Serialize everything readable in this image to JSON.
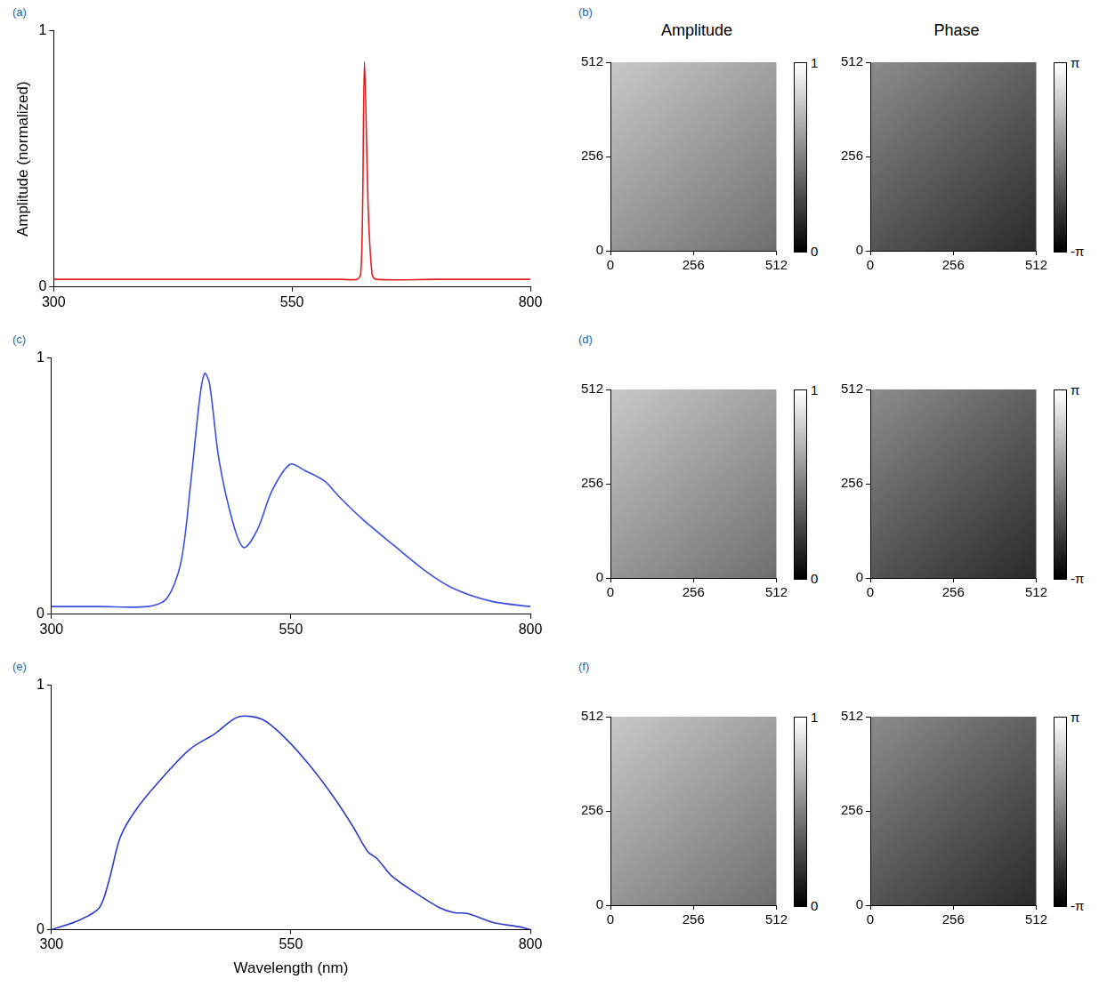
{
  "chart_data": [
    {
      "panel": "(a)",
      "type": "line",
      "y_label": "Amplitude (normalized)",
      "x": [
        300,
        400,
        500,
        600,
        618,
        622,
        624,
        626,
        630,
        634,
        638,
        700,
        800
      ],
      "series": [
        {
          "color": "#e02020",
          "values": [
            0.03,
            0.03,
            0.03,
            0.03,
            0.03,
            0.05,
            0.3,
            0.88,
            0.3,
            0.05,
            0.03,
            0.03,
            0.03
          ]
        }
      ],
      "xlim": [
        300,
        800
      ],
      "ylim": [
        0,
        1
      ],
      "xticks": [
        300,
        550,
        800
      ],
      "yticks": [
        0,
        1
      ],
      "grid": false
    },
    {
      "panel": "(c)",
      "type": "line",
      "x": [
        300,
        350,
        400,
        420,
        435,
        445,
        455,
        460,
        465,
        475,
        490,
        501,
        515,
        530,
        549,
        565,
        585,
        600,
        625,
        657,
        690,
        720,
        760,
        800
      ],
      "series": [
        {
          "color": "#3a4ee0",
          "values": [
            0.03,
            0.03,
            0.03,
            0.06,
            0.2,
            0.5,
            0.85,
            0.94,
            0.9,
            0.6,
            0.35,
            0.26,
            0.33,
            0.48,
            0.585,
            0.56,
            0.52,
            0.46,
            0.37,
            0.27,
            0.17,
            0.1,
            0.05,
            0.03
          ]
        }
      ],
      "xlim": [
        300,
        800
      ],
      "ylim": [
        0,
        1
      ],
      "xticks": [
        300,
        550,
        800
      ],
      "yticks": [
        0,
        1
      ],
      "grid": false
    },
    {
      "panel": "(e)",
      "type": "line",
      "x_label": "Wavelength (nm)",
      "x": [
        300,
        330,
        350,
        360,
        372,
        390,
        420,
        445,
        470,
        495,
        520,
        545,
        570,
        595,
        615,
        630,
        640,
        655,
        680,
        705,
        720,
        735,
        760,
        790,
        800
      ],
      "series": [
        {
          "color": "#2a3cc8",
          "values": [
            0,
            0.04,
            0.09,
            0.2,
            0.38,
            0.5,
            0.64,
            0.74,
            0.8,
            0.87,
            0.86,
            0.78,
            0.67,
            0.54,
            0.42,
            0.32,
            0.29,
            0.22,
            0.15,
            0.09,
            0.07,
            0.065,
            0.03,
            0.01,
            0
          ]
        }
      ],
      "xlim": [
        300,
        800
      ],
      "ylim": [
        0,
        1
      ],
      "xticks": [
        300,
        550,
        800
      ],
      "yticks": [
        0,
        1
      ],
      "grid": false
    }
  ],
  "images": [
    {
      "panel": "(b)",
      "images": [
        {
          "title": "Amplitude",
          "xlim": [
            0,
            512
          ],
          "ylim": [
            0,
            512
          ],
          "xticks": [
            0,
            256,
            512
          ],
          "yticks": [
            0,
            256,
            512
          ],
          "colorbar": {
            "range": [
              0,
              1
            ],
            "ticks": [
              0,
              1
            ]
          }
        },
        {
          "title": "Phase",
          "xlim": [
            0,
            512
          ],
          "ylim": [
            0,
            512
          ],
          "xticks": [
            0,
            256,
            512
          ],
          "yticks": [
            0,
            256,
            512
          ],
          "colorbar": {
            "range": [
              -3.14159,
              3.14159
            ],
            "ticks": [
              {
                "value": -3.14159,
                "label": "-π"
              },
              {
                "value": 3.14159,
                "label": "π"
              }
            ]
          }
        }
      ]
    },
    {
      "panel": "(d)",
      "images": [
        {
          "xlim": [
            0,
            512
          ],
          "ylim": [
            0,
            512
          ],
          "xticks": [
            0,
            256,
            512
          ],
          "yticks": [
            0,
            256,
            512
          ],
          "colorbar": {
            "range": [
              0,
              1
            ],
            "ticks": [
              0,
              1
            ]
          }
        },
        {
          "xlim": [
            0,
            512
          ],
          "ylim": [
            0,
            512
          ],
          "xticks": [
            0,
            256,
            512
          ],
          "yticks": [
            0,
            256,
            512
          ],
          "colorbar": {
            "range": [
              -3.14159,
              3.14159
            ],
            "ticks": [
              {
                "value": -3.14159,
                "label": "-π"
              },
              {
                "value": 3.14159,
                "label": "π"
              }
            ]
          }
        }
      ]
    },
    {
      "panel": "(f)",
      "images": [
        {
          "xlim": [
            0,
            512
          ],
          "ylim": [
            0,
            512
          ],
          "xticks": [
            0,
            256,
            512
          ],
          "yticks": [
            0,
            256,
            512
          ],
          "colorbar": {
            "range": [
              0,
              1
            ],
            "ticks": [
              0,
              1
            ]
          }
        },
        {
          "xlim": [
            0,
            512
          ],
          "ylim": [
            0,
            512
          ],
          "xticks": [
            0,
            256,
            512
          ],
          "yticks": [
            0,
            256,
            512
          ],
          "colorbar": {
            "range": [
              -3.14159,
              3.14159
            ],
            "ticks": [
              {
                "value": -3.14159,
                "label": "-π"
              },
              {
                "value": 3.14159,
                "label": "π"
              }
            ]
          }
        }
      ]
    }
  ]
}
